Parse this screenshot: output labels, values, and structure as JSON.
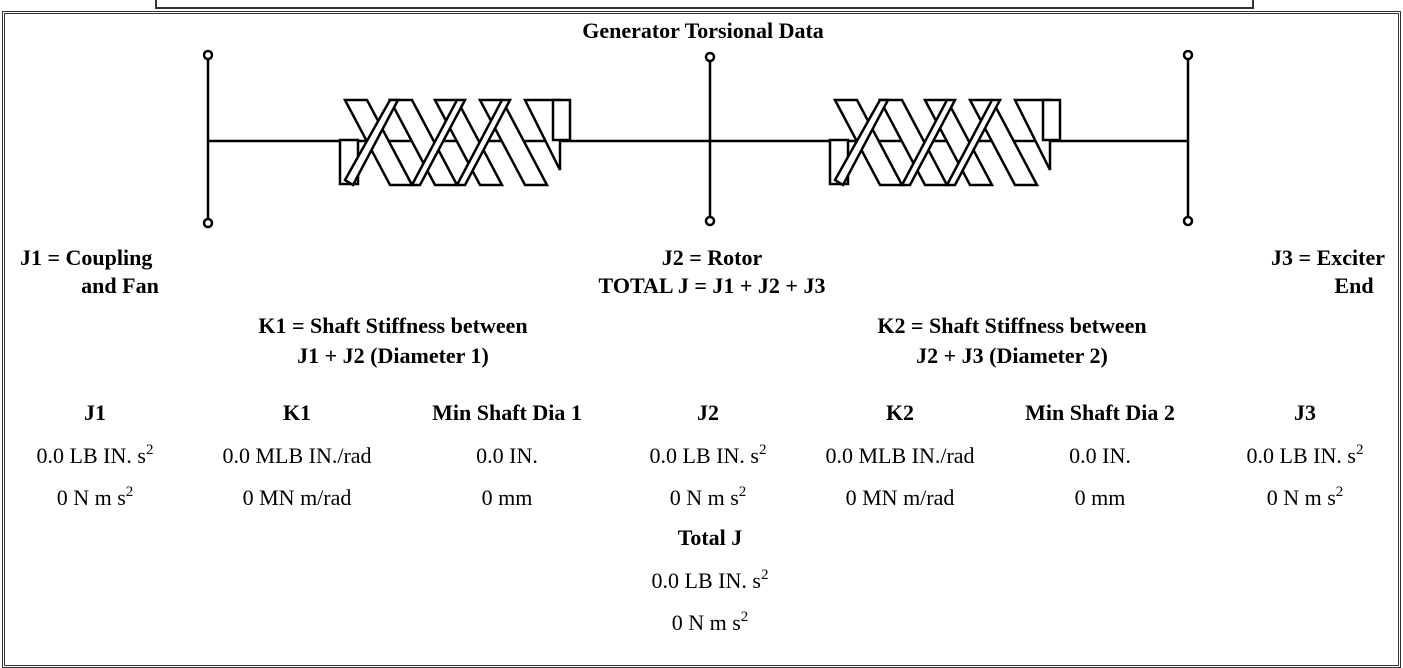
{
  "title": "Generator Torsional Data",
  "diagram": {
    "j1_label": [
      "J1 = Coupling",
      "and Fan"
    ],
    "j2_label": [
      "J2 = Rotor",
      "TOTAL J = J1 + J2 + J3"
    ],
    "j3_label": [
      "J3 = Exciter",
      "End"
    ],
    "k1_label": [
      "K1 = Shaft Stiffness between",
      "J1 + J2 (Diameter 1)"
    ],
    "k2_label": [
      "K2 = Shaft Stiffness between",
      "J2 + J3 (Diameter 2)"
    ]
  },
  "table": {
    "headers": [
      "J1",
      "K1",
      "Min Shaft Dia 1",
      "J2",
      "K2",
      "Min Shaft Dia 2",
      "J3"
    ],
    "rows": [
      [
        {
          "text": "0.0 LB IN. s",
          "sup": "2"
        },
        {
          "text": "0.0 MLB IN./rad"
        },
        {
          "text": "0.0 IN."
        },
        {
          "text": "0.0 LB IN. s",
          "sup": "2"
        },
        {
          "text": "0.0 MLB IN./rad"
        },
        {
          "text": "0.0 IN."
        },
        {
          "text": "0.0 LB IN. s",
          "sup": "2"
        }
      ],
      [
        {
          "text": "0 N m s",
          "sup": "2"
        },
        {
          "text": "0 MN m/rad"
        },
        {
          "text": "0 mm"
        },
        {
          "text": "0 N m s",
          "sup": "2"
        },
        {
          "text": "0 MN m/rad"
        },
        {
          "text": "0 mm"
        },
        {
          "text": "0 N m s",
          "sup": "2"
        }
      ]
    ]
  },
  "total": {
    "header": "Total J",
    "rows": [
      {
        "text": "0.0 LB IN. s",
        "sup": "2"
      },
      {
        "text": "0 N m s",
        "sup": "2"
      }
    ]
  }
}
